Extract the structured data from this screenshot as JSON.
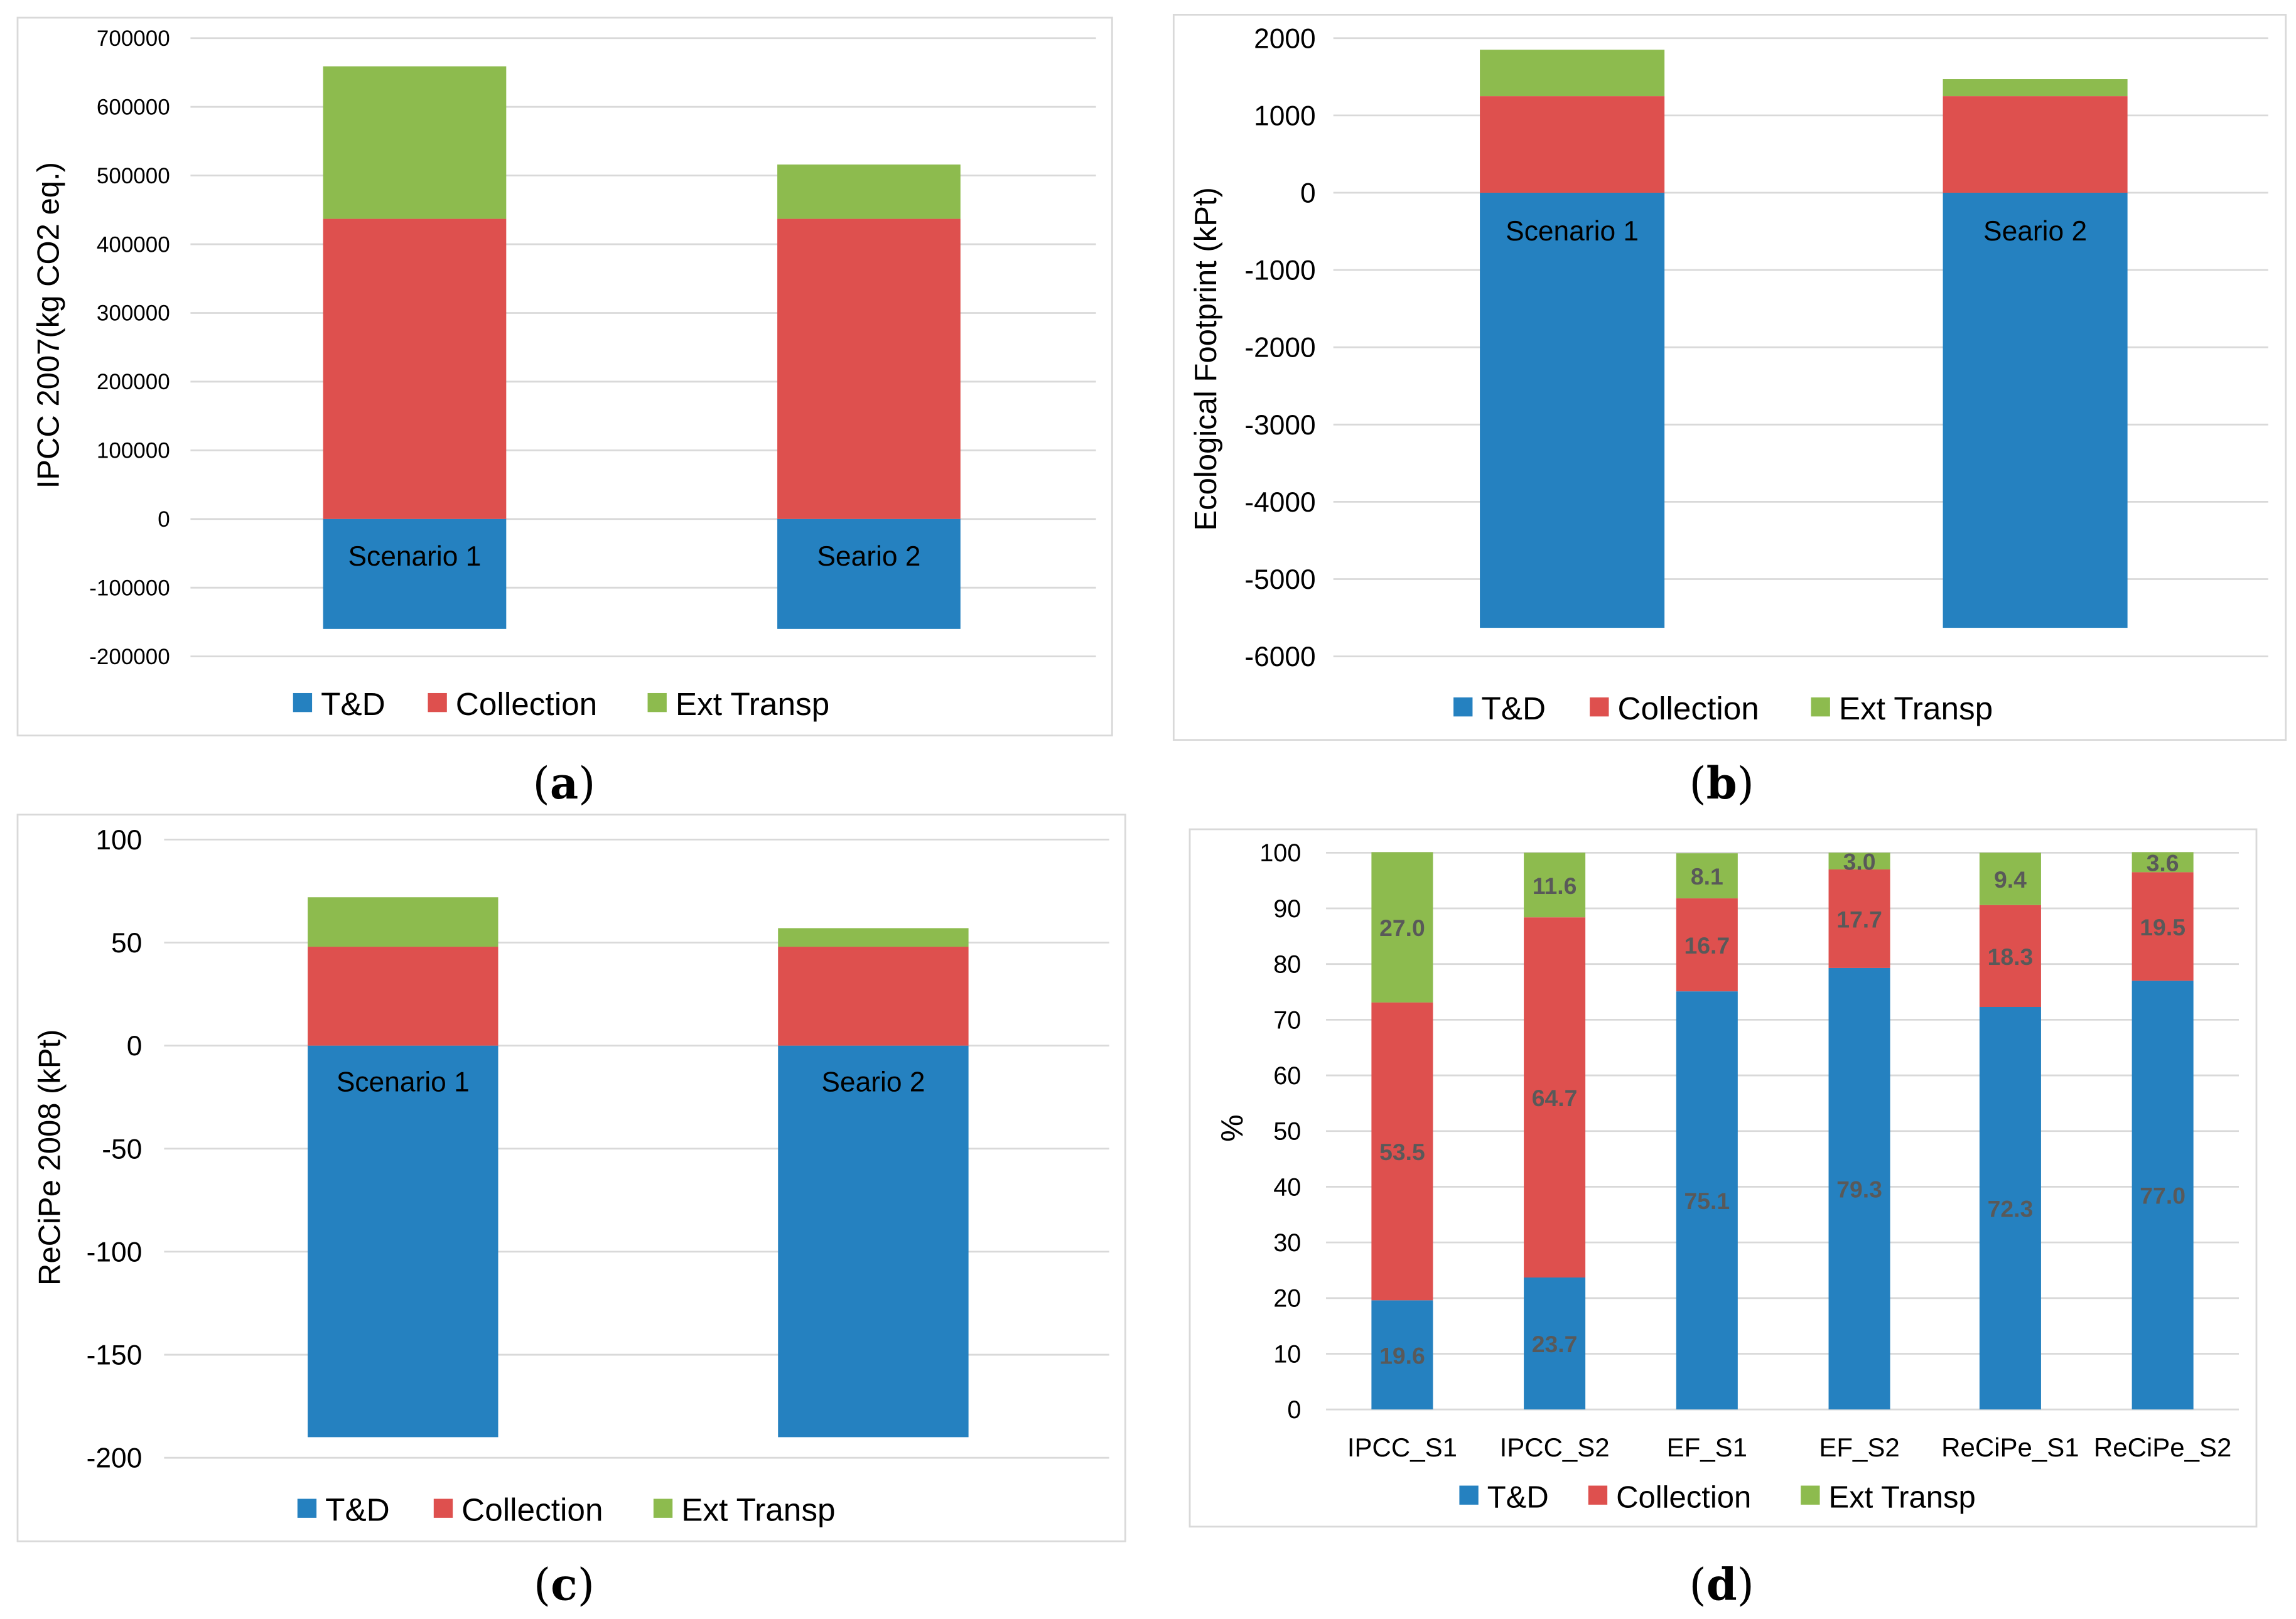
{
  "colors": {
    "T&D": "#2581C0",
    "Collection": "#DE504E",
    "Ext Transp": "#8DBB4E",
    "grid": "#D9D9D9",
    "frame": "#D9D9D9",
    "label": "#595959"
  },
  "chart_data": [
    {
      "type": "bar",
      "stacked": true,
      "caption": "(a)",
      "ylabel": "IPCC 2007(kg CO2 eq.)",
      "ylim": [
        -200000,
        700000
      ],
      "yticks": [
        700000,
        600000,
        500000,
        400000,
        300000,
        200000,
        100000,
        0,
        -100000,
        -200000
      ],
      "ytick_labels": [
        "700000",
        "600000",
        "500000",
        "400000",
        "300000",
        "200000",
        "100000",
        "0",
        "-100000",
        "-200000"
      ],
      "categories": [
        "Scenario 1",
        "Seario 2"
      ],
      "series": [
        {
          "name": "T&D",
          "values": [
            -160000,
            -160000
          ]
        },
        {
          "name": "Collection",
          "values": [
            437000,
            437000
          ]
        },
        {
          "name": "Ext Transp",
          "values": [
            222000,
            79000
          ]
        }
      ],
      "legend": [
        "T&D",
        "Collection",
        "Ext Transp"
      ],
      "legend_position": "bottom",
      "grid": true
    },
    {
      "type": "bar",
      "stacked": true,
      "caption": "(b)",
      "ylabel": "Ecological  Footprint (kPt)",
      "ylim": [
        -6000,
        2000
      ],
      "yticks": [
        2000,
        1000,
        0,
        -1000,
        -2000,
        -3000,
        -4000,
        -5000,
        -6000
      ],
      "ytick_labels": [
        "2000",
        "1000",
        "0",
        "-1000",
        "-2000",
        "-3000",
        "-4000",
        "-5000",
        "-6000"
      ],
      "categories": [
        "Scenario 1",
        "Seario 2"
      ],
      "series": [
        {
          "name": "T&D",
          "values": [
            -5630,
            -5630
          ]
        },
        {
          "name": "Collection",
          "values": [
            1250,
            1250
          ]
        },
        {
          "name": "Ext Transp",
          "values": [
            600,
            220
          ]
        }
      ],
      "legend": [
        "T&D",
        "Collection",
        "Ext Transp"
      ],
      "legend_position": "bottom",
      "grid": true
    },
    {
      "type": "bar",
      "stacked": true,
      "caption": "(c)",
      "ylabel": "ReCiPe 2008 (kPt)",
      "ylim": [
        -200,
        100
      ],
      "yticks": [
        100,
        50,
        0,
        -50,
        -100,
        -150,
        -200
      ],
      "ytick_labels": [
        "100",
        "50",
        "0",
        "-50",
        "-100",
        "-150",
        "-200"
      ],
      "categories": [
        "Scenario 1",
        "Seario 2"
      ],
      "series": [
        {
          "name": "T&D",
          "values": [
            -190,
            -190
          ]
        },
        {
          "name": "Collection",
          "values": [
            48,
            48
          ]
        },
        {
          "name": "Ext Transp",
          "values": [
            24,
            9
          ]
        }
      ],
      "legend": [
        "T&D",
        "Collection",
        "Ext Transp"
      ],
      "legend_position": "bottom",
      "grid": true
    },
    {
      "type": "bar",
      "stacked": true,
      "caption": "(d)",
      "ylabel": "%",
      "ylim": [
        0,
        100
      ],
      "yticks": [
        100,
        90,
        80,
        70,
        60,
        50,
        40,
        30,
        20,
        10,
        0
      ],
      "ytick_labels": [
        "100",
        "90",
        "80",
        "70",
        "60",
        "50",
        "40",
        "30",
        "20",
        "10",
        "0"
      ],
      "categories": [
        "IPCC_S1",
        "IPCC_S2",
        "EF_S1",
        "EF_S2",
        "ReCiPe_S1",
        "ReCiPe_S2"
      ],
      "series": [
        {
          "name": "T&D",
          "values": [
            19.6,
            23.7,
            75.1,
            79.3,
            72.3,
            77.0
          ],
          "labels": [
            "19.6",
            "23.7",
            "75.1",
            "79.3",
            "72.3",
            "77.0"
          ]
        },
        {
          "name": "Collection",
          "values": [
            53.5,
            64.7,
            16.7,
            17.7,
            18.3,
            19.5
          ],
          "labels": [
            "53.5",
            "64.7",
            "16.7",
            "17.7",
            "18.3",
            "19.5"
          ]
        },
        {
          "name": "Ext Transp",
          "values": [
            27.0,
            11.6,
            8.1,
            3.0,
            9.4,
            3.6
          ],
          "labels": [
            "27.0",
            "11.6",
            "8.1",
            "3.0",
            "9.4",
            "3.6"
          ]
        }
      ],
      "legend": [
        "T&D",
        "Collection",
        "Ext Transp"
      ],
      "legend_position": "bottom",
      "grid": true
    }
  ]
}
